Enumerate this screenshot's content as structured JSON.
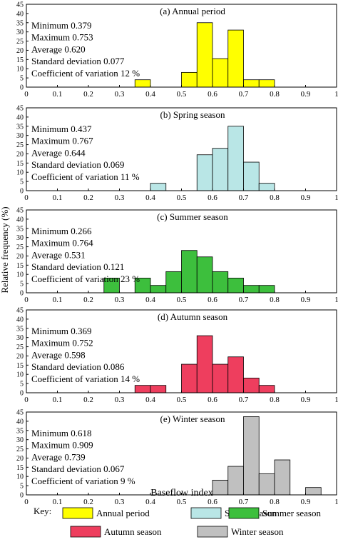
{
  "figure": {
    "ylabel": "Relative frequency (%)",
    "xlabel": "Baseflow index",
    "key_label": "Key:"
  },
  "chart_data": [
    {
      "type": "bar",
      "title": "(a) Annual period",
      "color": "#ffff00",
      "legend_label": "Annual period",
      "xlim": [
        0,
        1
      ],
      "ylim": [
        0,
        45
      ],
      "xticks": [
        "0",
        "0.1",
        "0.2",
        "0.3",
        "0.4",
        "0.5",
        "0.6",
        "0.7",
        "0.8",
        "0.9",
        "1"
      ],
      "yticks": [
        "0",
        "5",
        "10",
        "15",
        "20",
        "25",
        "30",
        "35",
        "40",
        "45"
      ],
      "bin_width": 0.05,
      "bins": [
        {
          "start": 0.35,
          "value": 4
        },
        {
          "start": 0.5,
          "value": 8
        },
        {
          "start": 0.55,
          "value": 35
        },
        {
          "start": 0.6,
          "value": 15.5
        },
        {
          "start": 0.65,
          "value": 31
        },
        {
          "start": 0.7,
          "value": 4
        },
        {
          "start": 0.75,
          "value": 4
        }
      ],
      "stats": [
        "Minimum  0.379",
        "Maximum  0.753",
        "Average  0.620",
        "Standard deviation  0.077",
        "Coefficient of variation  12 %"
      ]
    },
    {
      "type": "bar",
      "title": "(b) Spring season",
      "color": "#b9e6e6",
      "legend_label": "Spring season",
      "xlim": [
        0,
        1
      ],
      "ylim": [
        0,
        45
      ],
      "xticks": [
        "0",
        "0.1",
        "0.2",
        "0.3",
        "0.4",
        "0.5",
        "0.6",
        "0.7",
        "0.8",
        "0.9",
        "1"
      ],
      "yticks": [
        "0",
        "5",
        "10",
        "15",
        "20",
        "25",
        "30",
        "35",
        "40",
        "45"
      ],
      "bin_width": 0.05,
      "bins": [
        {
          "start": 0.4,
          "value": 4
        },
        {
          "start": 0.55,
          "value": 19.5
        },
        {
          "start": 0.6,
          "value": 23
        },
        {
          "start": 0.65,
          "value": 35
        },
        {
          "start": 0.7,
          "value": 15.5
        },
        {
          "start": 0.75,
          "value": 4
        }
      ],
      "stats": [
        "Minimum  0.437",
        "Maximum  0.767",
        "Average  0.644",
        "Standard deviation  0.069",
        "Coefficient of variation  11 %"
      ]
    },
    {
      "type": "bar",
      "title": "(c) Summer season",
      "color": "#3dbf3d",
      "legend_label": "Summer season",
      "xlim": [
        0,
        1
      ],
      "ylim": [
        0,
        45
      ],
      "xticks": [
        "0",
        "0.1",
        "0.2",
        "0.3",
        "0.4",
        "0.5",
        "0.6",
        "0.7",
        "0.8",
        "0.9",
        "1"
      ],
      "yticks": [
        "0",
        "5",
        "10",
        "15",
        "20",
        "25",
        "30",
        "35",
        "40",
        "45"
      ],
      "bin_width": 0.05,
      "bins": [
        {
          "start": 0.25,
          "value": 8
        },
        {
          "start": 0.35,
          "value": 8
        },
        {
          "start": 0.4,
          "value": 4
        },
        {
          "start": 0.45,
          "value": 11.5
        },
        {
          "start": 0.5,
          "value": 23
        },
        {
          "start": 0.55,
          "value": 19.5
        },
        {
          "start": 0.6,
          "value": 11.5
        },
        {
          "start": 0.65,
          "value": 8
        },
        {
          "start": 0.7,
          "value": 4
        },
        {
          "start": 0.75,
          "value": 4
        }
      ],
      "stats": [
        "Minimum  0.266",
        "Maximum  0.764",
        "Average  0.531",
        "Standard deviation  0.121",
        "Coefficient of variation  23 %"
      ]
    },
    {
      "type": "bar",
      "title": "(d) Autumn season",
      "color": "#ee3e5e",
      "legend_label": "Autumn season",
      "xlim": [
        0,
        1
      ],
      "ylim": [
        0,
        45
      ],
      "xticks": [
        "0",
        "0.1",
        "0.2",
        "0.3",
        "0.4",
        "0.5",
        "0.6",
        "0.7",
        "0.8",
        "0.9",
        "1"
      ],
      "yticks": [
        "0",
        "5",
        "10",
        "15",
        "20",
        "25",
        "30",
        "35",
        "40",
        "45"
      ],
      "bin_width": 0.05,
      "bins": [
        {
          "start": 0.35,
          "value": 4
        },
        {
          "start": 0.4,
          "value": 4
        },
        {
          "start": 0.5,
          "value": 15.5
        },
        {
          "start": 0.55,
          "value": 31
        },
        {
          "start": 0.6,
          "value": 15.5
        },
        {
          "start": 0.65,
          "value": 19.5
        },
        {
          "start": 0.7,
          "value": 8
        },
        {
          "start": 0.75,
          "value": 4
        }
      ],
      "stats": [
        "Minimum  0.369",
        "Maximum  0.752",
        "Average  0.598",
        "Standard deviation  0.086",
        "Coefficient of variation  14 %"
      ]
    },
    {
      "type": "bar",
      "title": "(e) Winter season",
      "color": "#c0c0c0",
      "legend_label": "Winter season",
      "xlim": [
        0,
        1
      ],
      "ylim": [
        0,
        45
      ],
      "xticks": [
        "0",
        "0.1",
        "0.2",
        "0.3",
        "0.4",
        "0.5",
        "0.6",
        "0.7",
        "0.8",
        "0.9",
        "1"
      ],
      "yticks": [
        "0",
        "5",
        "10",
        "15",
        "20",
        "25",
        "30",
        "35",
        "40",
        "45"
      ],
      "bin_width": 0.05,
      "bins": [
        {
          "start": 0.6,
          "value": 8
        },
        {
          "start": 0.65,
          "value": 15.5
        },
        {
          "start": 0.7,
          "value": 42.5
        },
        {
          "start": 0.75,
          "value": 11.5
        },
        {
          "start": 0.8,
          "value": 19
        },
        {
          "start": 0.9,
          "value": 4
        }
      ],
      "stats": [
        "Minimum  0.618",
        "Maximum  0.909",
        "Average  0.739",
        "Standard deviation  0.067",
        "Coefficient of variation  9 %"
      ]
    }
  ]
}
